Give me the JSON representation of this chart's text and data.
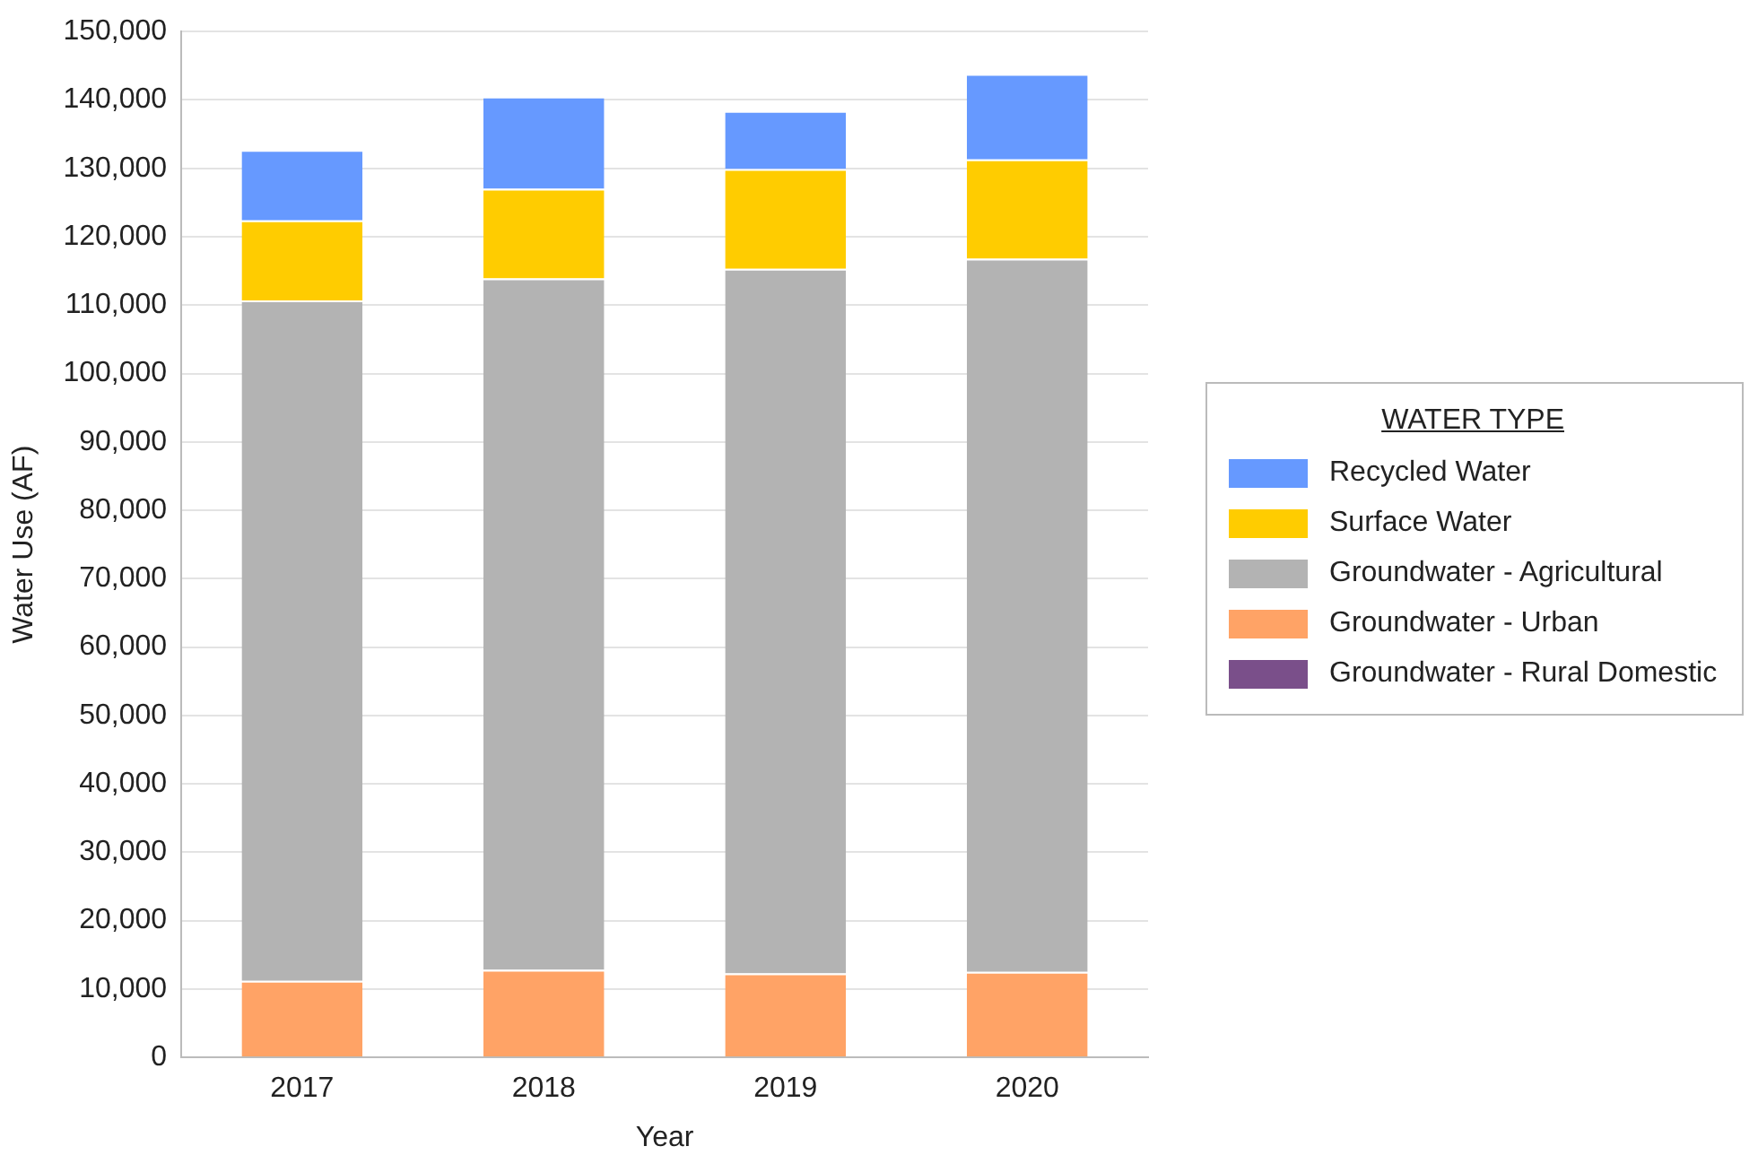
{
  "chart_data": {
    "type": "bar",
    "stacked": true,
    "xlabel": "Year",
    "ylabel": "Water Use (AF)",
    "legend_title": "WATER TYPE",
    "legend": "right",
    "grid": "y",
    "categories": [
      "2017",
      "2018",
      "2019",
      "2020"
    ],
    "ylim": [
      0,
      150000
    ],
    "yticks": [
      0,
      {
        "value": 10000,
        "label": "10,000"
      },
      {
        "value": 20000,
        "label": "20,000"
      },
      {
        "value": 30000,
        "label": "30,000"
      },
      {
        "value": 40000,
        "label": "40,000"
      },
      {
        "value": 50000,
        "label": "50,000"
      },
      {
        "value": 60000,
        "label": "60,000"
      },
      {
        "value": 70000,
        "label": "70,000"
      },
      {
        "value": 80000,
        "label": "80,000"
      },
      {
        "value": 90000,
        "label": "90,000"
      },
      {
        "value": 100000,
        "label": "100,000"
      },
      {
        "value": 110000,
        "label": "110,000"
      },
      {
        "value": 120000,
        "label": "120,000"
      },
      {
        "value": 130000,
        "label": "130,000"
      },
      {
        "value": 140000,
        "label": "140,000"
      },
      {
        "value": 150000,
        "label": "150,000"
      }
    ],
    "series": [
      {
        "name": "Groundwater - Rural Domestic",
        "color": "#7a4f8a",
        "values": [
          0,
          0,
          0,
          0
        ]
      },
      {
        "name": "Groundwater - Urban",
        "color": "#ffa366",
        "values": [
          11200,
          12800,
          12300,
          12500
        ]
      },
      {
        "name": "Groundwater - Agricultural",
        "color": "#b3b3b3",
        "values": [
          99500,
          101100,
          103000,
          104300
        ]
      },
      {
        "name": "Surface Water",
        "color": "#ffcc00",
        "values": [
          11700,
          13100,
          14600,
          14500
        ]
      },
      {
        "name": "Recycled Water",
        "color": "#6699ff",
        "values": [
          10300,
          13500,
          8500,
          12500
        ]
      }
    ]
  }
}
